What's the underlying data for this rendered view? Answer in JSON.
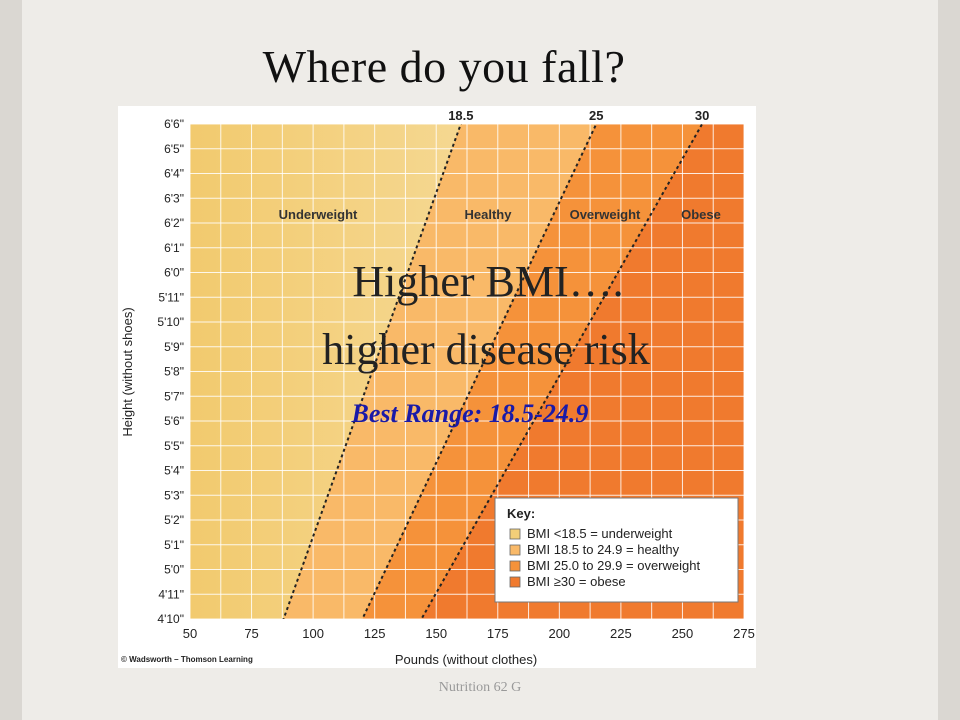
{
  "slide": {
    "title": "Where do you fall?",
    "footer": "Nutrition 62 G"
  },
  "overlay": {
    "line1": "Higher BMI….",
    "line2": "higher disease risk",
    "best_range": "Best Range: 18.5-24.9"
  },
  "colors": {
    "underweight": "#f3cf78",
    "healthy": "#f9b968",
    "overweight": "#f5923a",
    "obese": "#f07a2e",
    "best_range_text": "#1a1aa8",
    "grid": "#ffffff"
  },
  "chart_data": {
    "type": "area",
    "xlabel": "Pounds (without clothes)",
    "ylabel": "Height (without shoes)",
    "x_ticks": [
      "50",
      "75",
      "100",
      "125",
      "150",
      "175",
      "200",
      "225",
      "250",
      "275"
    ],
    "xlim": [
      50,
      275
    ],
    "y_ticks": [
      "4'10\"",
      "4'11\"",
      "5'0\"",
      "5'1\"",
      "5'2\"",
      "5'3\"",
      "5'4\"",
      "5'5\"",
      "5'6\"",
      "5'7\"",
      "5'8\"",
      "5'9\"",
      "5'10\"",
      "5'11\"",
      "6'0\"",
      "6'1\"",
      "6'2\"",
      "6'3\"",
      "6'4\"",
      "6'5\"",
      "6'6\""
    ],
    "ylim_inches": [
      58,
      78
    ],
    "bmi_lines": [
      {
        "label": "18.5",
        "points": [
          {
            "height_in": 58,
            "pounds": 88
          },
          {
            "height_in": 78,
            "pounds": 160
          }
        ]
      },
      {
        "label": "25",
        "points": [
          {
            "height_in": 58,
            "pounds": 120
          },
          {
            "height_in": 78,
            "pounds": 215
          }
        ]
      },
      {
        "label": "30",
        "points": [
          {
            "height_in": 58,
            "pounds": 144
          },
          {
            "height_in": 78,
            "pounds": 258
          }
        ]
      }
    ],
    "region_labels": [
      "Underweight",
      "Healthy",
      "Overweight",
      "Obese"
    ],
    "legend": {
      "title": "Key:",
      "position": "bottom-right",
      "items": [
        "BMI <18.5 = underweight",
        "BMI 18.5 to 24.9 = healthy",
        "BMI 25.0 to 29.9 = overweight",
        "BMI ≥30 = obese"
      ]
    },
    "credit": "© Wadsworth – Thomson Learning",
    "grid": true
  }
}
